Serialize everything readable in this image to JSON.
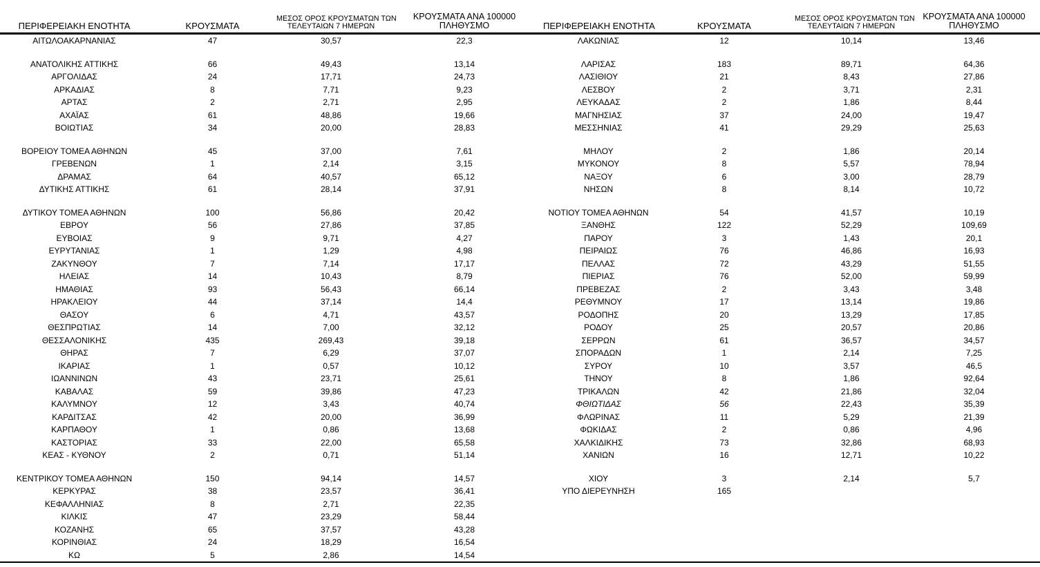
{
  "headers": {
    "region": "ΠΕΡΙΦΕΡΕΙΑΚΗ ΕΝΟΤΗΤΑ",
    "cases": "ΚΡΟΥΣΜΑΤΑ",
    "avg7_line1": "ΜΕΣΟΣ ΟΡΟΣ ΚΡΟΥΣΜΑΤΩΝ ΤΩΝ",
    "avg7_line2": "ΤΕΛΕΥΤΑΙΩΝ 7 ΗΜΕΡΩΝ",
    "per100k_line1": "ΚΡΟΥΣΜΑΤΑ ΑΝΑ 100000",
    "per100k_line2": "ΠΛΗΘΥΣΜΟ"
  },
  "colors": {
    "text": "#000000",
    "background": "#ffffff",
    "rule": "#000000"
  },
  "tables": [
    {
      "rows": [
        {
          "region": "ΑΙΤΩΛΟΑΚΑΡΝΑΝΙΑΣ",
          "cases": "47",
          "avg7": "30,57",
          "per100k": "22,3"
        },
        {
          "spacer": true
        },
        {
          "region": "ΑΝΑΤΟΛΙΚΗΣ ΑΤΤΙΚΗΣ",
          "cases": "66",
          "avg7": "49,43",
          "per100k": "13,14"
        },
        {
          "region": "ΑΡΓΟΛΙΔΑΣ",
          "cases": "24",
          "avg7": "17,71",
          "per100k": "24,73"
        },
        {
          "region": "ΑΡΚΑΔΙΑΣ",
          "cases": "8",
          "avg7": "7,71",
          "per100k": "9,23"
        },
        {
          "region": "ΑΡΤΑΣ",
          "cases": "2",
          "avg7": "2,71",
          "per100k": "2,95"
        },
        {
          "region": "ΑΧΑΪΑΣ",
          "cases": "61",
          "avg7": "48,86",
          "per100k": "19,66"
        },
        {
          "region": "ΒΟΙΩΤΙΑΣ",
          "cases": "34",
          "avg7": "20,00",
          "per100k": "28,83"
        },
        {
          "spacer": true
        },
        {
          "region": "ΒΟΡΕΙΟΥ ΤΟΜΕΑ ΑΘΗΝΩΝ",
          "cases": "45",
          "avg7": "37,00",
          "per100k": "7,61"
        },
        {
          "region": "ΓΡΕΒΕΝΩΝ",
          "cases": "1",
          "avg7": "2,14",
          "per100k": "3,15"
        },
        {
          "region": "ΔΡΑΜΑΣ",
          "cases": "64",
          "avg7": "40,57",
          "per100k": "65,12"
        },
        {
          "region": "ΔΥΤΙΚΗΣ ΑΤΤΙΚΗΣ",
          "cases": "61",
          "avg7": "28,14",
          "per100k": "37,91"
        },
        {
          "spacer": true
        },
        {
          "region": "ΔΥΤΙΚΟΥ ΤΟΜΕΑ ΑΘΗΝΩΝ",
          "cases": "100",
          "avg7": "56,86",
          "per100k": "20,42"
        },
        {
          "region": "ΕΒΡΟΥ",
          "cases": "56",
          "avg7": "27,86",
          "per100k": "37,85"
        },
        {
          "region": "ΕΥΒΟΙΑΣ",
          "cases": "9",
          "avg7": "9,71",
          "per100k": "4,27"
        },
        {
          "region": "ΕΥΡΥΤΑΝΙΑΣ",
          "cases": "1",
          "avg7": "1,29",
          "per100k": "4,98"
        },
        {
          "region": "ΖΑΚΥΝΘΟΥ",
          "cases": "7",
          "avg7": "7,14",
          "per100k": "17,17"
        },
        {
          "region": "ΗΛΕΙΑΣ",
          "cases": "14",
          "avg7": "10,43",
          "per100k": "8,79"
        },
        {
          "region": "ΗΜΑΘΙΑΣ",
          "cases": "93",
          "avg7": "56,43",
          "per100k": "66,14"
        },
        {
          "region": "ΗΡΑΚΛΕΙΟΥ",
          "cases": "44",
          "avg7": "37,14",
          "per100k": "14,4"
        },
        {
          "region": "ΘΑΣΟΥ",
          "cases": "6",
          "avg7": "4,71",
          "per100k": "43,57"
        },
        {
          "region": "ΘΕΣΠΡΩΤΙΑΣ",
          "cases": "14",
          "avg7": "7,00",
          "per100k": "32,12"
        },
        {
          "region": "ΘΕΣΣΑΛΟΝΙΚΗΣ",
          "cases": "435",
          "avg7": "269,43",
          "per100k": "39,18"
        },
        {
          "region": "ΘΗΡΑΣ",
          "cases": "7",
          "avg7": "6,29",
          "per100k": "37,07"
        },
        {
          "region": "ΙΚΑΡΙΑΣ",
          "cases": "1",
          "avg7": "0,57",
          "per100k": "10,12"
        },
        {
          "region": "ΙΩΑΝΝΙΝΩΝ",
          "cases": "43",
          "avg7": "23,71",
          "per100k": "25,61"
        },
        {
          "region": "ΚΑΒΑΛΑΣ",
          "cases": "59",
          "avg7": "39,86",
          "per100k": "47,23"
        },
        {
          "region": "ΚΑΛΥΜΝΟΥ",
          "cases": "12",
          "avg7": "3,43",
          "per100k": "40,74"
        },
        {
          "region": "ΚΑΡΔΙΤΣΑΣ",
          "cases": "42",
          "avg7": "20,00",
          "per100k": "36,99"
        },
        {
          "region": "ΚΑΡΠΑΘΟΥ",
          "cases": "1",
          "avg7": "0,86",
          "per100k": "13,68"
        },
        {
          "region": "ΚΑΣΤΟΡΙΑΣ",
          "cases": "33",
          "avg7": "22,00",
          "per100k": "65,58"
        },
        {
          "region": "ΚΕΑΣ - ΚΥΘΝΟΥ",
          "cases": "2",
          "avg7": "0,71",
          "per100k": "51,14"
        },
        {
          "spacer": true
        },
        {
          "region": "ΚΕΝΤΡΙΚΟΥ ΤΟΜΕΑ ΑΘΗΝΩΝ",
          "cases": "150",
          "avg7": "94,14",
          "per100k": "14,57"
        },
        {
          "region": "ΚΕΡΚΥΡΑΣ",
          "cases": "38",
          "avg7": "23,57",
          "per100k": "36,41"
        },
        {
          "region": "ΚΕΦΑΛΛΗΝΙΑΣ",
          "cases": "8",
          "avg7": "2,71",
          "per100k": "22,35"
        },
        {
          "region": "ΚΙΛΚΙΣ",
          "cases": "47",
          "avg7": "23,29",
          "per100k": "58,44"
        },
        {
          "region": "ΚΟΖΑΝΗΣ",
          "cases": "65",
          "avg7": "37,57",
          "per100k": "43,28"
        },
        {
          "region": "ΚΟΡΙΝΘΙΑΣ",
          "cases": "24",
          "avg7": "18,29",
          "per100k": "16,54"
        },
        {
          "region": "ΚΩ",
          "cases": "5",
          "avg7": "2,86",
          "per100k": "14,54"
        }
      ]
    },
    {
      "rows": [
        {
          "region": "ΛΑΚΩΝΙΑΣ",
          "cases": "12",
          "avg7": "10,14",
          "per100k": "13,46"
        },
        {
          "spacer": true
        },
        {
          "region": "ΛΑΡΙΣΑΣ",
          "cases": "183",
          "avg7": "89,71",
          "per100k": "64,36"
        },
        {
          "region": "ΛΑΣΙΘΙΟΥ",
          "cases": "21",
          "avg7": "8,43",
          "per100k": "27,86"
        },
        {
          "region": "ΛΕΣΒΟΥ",
          "cases": "2",
          "avg7": "3,71",
          "per100k": "2,31"
        },
        {
          "region": "ΛΕΥΚΑΔΑΣ",
          "cases": "2",
          "avg7": "1,86",
          "per100k": "8,44"
        },
        {
          "region": "ΜΑΓΝΗΣΙΑΣ",
          "cases": "37",
          "avg7": "24,00",
          "per100k": "19,47"
        },
        {
          "region": "ΜΕΣΣΗΝΙΑΣ",
          "cases": "41",
          "avg7": "29,29",
          "per100k": "25,63"
        },
        {
          "spacer": true
        },
        {
          "region": "ΜΗΛΟΥ",
          "cases": "2",
          "avg7": "1,86",
          "per100k": "20,14"
        },
        {
          "region": "ΜΥΚΟΝΟΥ",
          "cases": "8",
          "avg7": "5,57",
          "per100k": "78,94"
        },
        {
          "region": "ΝΑΞΟΥ",
          "cases": "6",
          "avg7": "3,00",
          "per100k": "28,79"
        },
        {
          "region": "ΝΗΣΩΝ",
          "cases": "8",
          "avg7": "8,14",
          "per100k": "10,72"
        },
        {
          "spacer": true
        },
        {
          "region": "ΝΟΤΙΟΥ ΤΟΜΕΑ ΑΘΗΝΩΝ",
          "cases": "54",
          "avg7": "41,57",
          "per100k": "10,19"
        },
        {
          "region": "ΞΑΝΘΗΣ",
          "cases": "122",
          "avg7": "52,29",
          "per100k": "109,69"
        },
        {
          "region": "ΠΑΡΟΥ",
          "cases": "3",
          "avg7": "1,43",
          "per100k": "20,1"
        },
        {
          "region": "ΠΕΙΡΑΙΩΣ",
          "cases": "76",
          "avg7": "46,86",
          "per100k": "16,93"
        },
        {
          "region": "ΠΕΛΛΑΣ",
          "cases": "72",
          "avg7": "43,29",
          "per100k": "51,55"
        },
        {
          "region": "ΠΙΕΡΙΑΣ",
          "cases": "76",
          "avg7": "52,00",
          "per100k": "59,99"
        },
        {
          "region": "ΠΡΕΒΕΖΑΣ",
          "cases": "2",
          "avg7": "3,43",
          "per100k": "3,48"
        },
        {
          "region": "ΡΕΘΥΜΝΟΥ",
          "cases": "17",
          "avg7": "13,14",
          "per100k": "19,86"
        },
        {
          "region": "ΡΟΔΟΠΗΣ",
          "cases": "20",
          "avg7": "13,29",
          "per100k": "17,85"
        },
        {
          "region": "ΡΟΔΟΥ",
          "cases": "25",
          "avg7": "20,57",
          "per100k": "20,86"
        },
        {
          "region": "ΣΕΡΡΩΝ",
          "cases": "61",
          "avg7": "36,57",
          "per100k": "34,57"
        },
        {
          "region": "ΣΠΟΡΑΔΩΝ",
          "cases": "1",
          "avg7": "2,14",
          "per100k": "7,25"
        },
        {
          "region": "ΣΥΡΟΥ",
          "cases": "10",
          "avg7": "3,57",
          "per100k": "46,5"
        },
        {
          "region": "ΤΗΝΟΥ",
          "cases": "8",
          "avg7": "1,86",
          "per100k": "92,64"
        },
        {
          "region": "ΤΡΙΚΑΛΩΝ",
          "cases": "42",
          "avg7": "21,86",
          "per100k": "32,04"
        },
        {
          "region": "ΦΘΙΩΤΙΔΑΣ",
          "cases": "56",
          "avg7": "22,43",
          "per100k": "35,39",
          "italic": true
        },
        {
          "region": "ΦΛΩΡΙΝΑΣ",
          "cases": "11",
          "avg7": "5,29",
          "per100k": "21,39"
        },
        {
          "region": "ΦΩΚΙΔΑΣ",
          "cases": "2",
          "avg7": "0,86",
          "per100k": "4,96"
        },
        {
          "region": "ΧΑΛΚΙΔΙΚΗΣ",
          "cases": "73",
          "avg7": "32,86",
          "per100k": "68,93"
        },
        {
          "region": "ΧΑΝΙΩΝ",
          "cases": "16",
          "avg7": "12,71",
          "per100k": "10,22"
        },
        {
          "spacer": true
        },
        {
          "region": "ΧΙΟΥ",
          "cases": "3",
          "avg7": "2,14",
          "per100k": "5,7"
        },
        {
          "region": "ΥΠΟ ΔΙΕΡΕΥΝΗΣΗ",
          "cases": "165",
          "avg7": "",
          "per100k": ""
        }
      ]
    }
  ]
}
